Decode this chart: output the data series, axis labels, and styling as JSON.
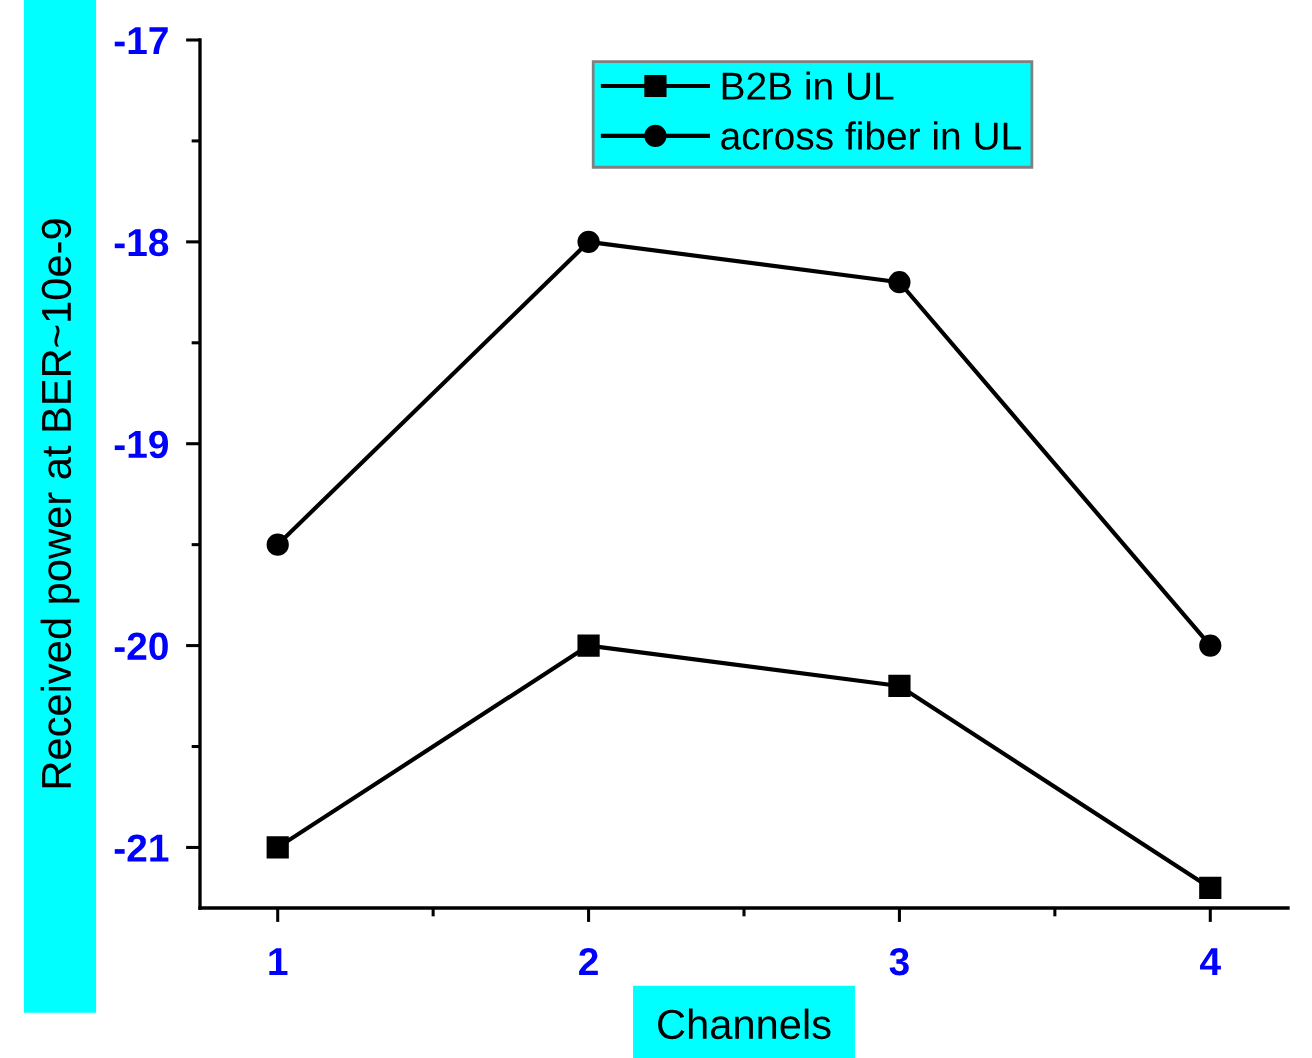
{
  "chart_data": {
    "type": "line",
    "xlabel": "Channels",
    "ylabel": "Received power at BER~10e-9",
    "x": [
      1,
      2,
      3,
      4
    ],
    "xlim": [
      0.75,
      4.25
    ],
    "xticks": [
      1,
      {
        "value": 1.5,
        "label": null
      },
      2,
      {
        "value": 2.5,
        "label": null
      },
      3,
      {
        "value": 3.5,
        "label": null
      },
      4
    ],
    "ylim": [
      -21.3,
      -17
    ],
    "yticks": [
      -21,
      {
        "value": -20.5,
        "label": null
      },
      -20,
      {
        "value": -19.5,
        "label": null
      },
      -19,
      {
        "value": -18.5,
        "label": null
      },
      -18,
      {
        "value": -17.5,
        "label": null
      },
      -17
    ],
    "series": [
      {
        "name": "B2B in UL",
        "color": "#000000",
        "marker": "square",
        "values": [
          -21,
          -20,
          -20.2,
          -21.2
        ]
      },
      {
        "name": "across fiber in UL",
        "color": "#000000",
        "marker": "circle",
        "values": [
          -19.5,
          -18,
          -18.2,
          -20
        ]
      }
    ],
    "line_style": "solid",
    "legend": "top",
    "grid": false
  }
}
